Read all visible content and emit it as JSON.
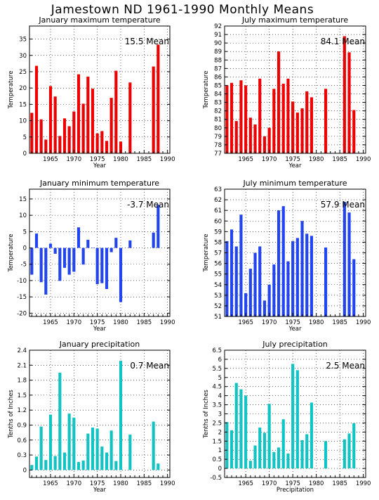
{
  "page": {
    "title": "Jamestown ND  1961-1990 Monthly Means"
  },
  "chart_data": [
    {
      "type": "bar",
      "title": "January maximum temperature",
      "mean_label": "15.5 Mean",
      "xlabel": "Year",
      "ylabel": "Temperature",
      "color": "#ee0000",
      "x": [
        1961,
        1962,
        1963,
        1964,
        1965,
        1966,
        1967,
        1968,
        1969,
        1970,
        1971,
        1972,
        1973,
        1974,
        1975,
        1976,
        1977,
        1978,
        1979,
        1980,
        1981,
        1982,
        1983,
        1984,
        1985,
        1986,
        1987,
        1988,
        1989,
        1990
      ],
      "values": [
        12.4,
        26.8,
        10.4,
        4.2,
        20.6,
        17.4,
        5.3,
        10.7,
        8.3,
        12.8,
        24.2,
        15.2,
        23.5,
        19.8,
        6.1,
        6.8,
        3.8,
        17.0,
        25.3,
        3.6,
        null,
        21.7,
        null,
        null,
        null,
        null,
        26.6,
        33.3,
        null,
        null
      ],
      "xlim": [
        1960.5,
        1990.5
      ],
      "ylim": [
        0,
        39
      ],
      "yticks": [
        0,
        5,
        10,
        15,
        20,
        25,
        30,
        35
      ],
      "xticks": [
        1965,
        1970,
        1975,
        1980,
        1985,
        1990
      ]
    },
    {
      "type": "bar",
      "title": "July maximum temperature",
      "mean_label": "84.1 Mean",
      "xlabel": "Year",
      "ylabel": "Temperature",
      "color": "#ee0000",
      "x": [
        1961,
        1962,
        1963,
        1964,
        1965,
        1966,
        1967,
        1968,
        1969,
        1970,
        1971,
        1972,
        1973,
        1974,
        1975,
        1976,
        1977,
        1978,
        1979,
        1980,
        1981,
        1982,
        1983,
        1984,
        1985,
        1986,
        1987,
        1988,
        1989,
        1990
      ],
      "values": [
        85.0,
        85.3,
        80.8,
        85.6,
        85.0,
        81.2,
        80.4,
        85.8,
        79.0,
        80.0,
        84.6,
        89.0,
        85.2,
        85.8,
        83.1,
        81.8,
        82.3,
        84.3,
        83.6,
        null,
        null,
        84.6,
        null,
        null,
        null,
        90.8,
        88.9,
        82.1,
        null,
        null
      ],
      "xlim": [
        1960.5,
        1990.5
      ],
      "ylim": [
        77,
        92
      ],
      "yticks": [
        77,
        78,
        79,
        80,
        81,
        82,
        83,
        84,
        85,
        86,
        87,
        88,
        89,
        90,
        91,
        92
      ],
      "xticks": [
        1965,
        1970,
        1975,
        1980,
        1985,
        1990
      ]
    },
    {
      "type": "bar",
      "title": "January minimum temperature",
      "mean_label": "-3.7 Mean",
      "xlabel": "Year",
      "ylabel": "Temperature",
      "color": "#2244ee",
      "x": [
        1961,
        1962,
        1963,
        1964,
        1965,
        1966,
        1967,
        1968,
        1969,
        1970,
        1971,
        1972,
        1973,
        1974,
        1975,
        1976,
        1977,
        1978,
        1979,
        1980,
        1981,
        1982,
        1983,
        1984,
        1985,
        1986,
        1987,
        1988,
        1989,
        1990
      ],
      "values": [
        -8.2,
        4.4,
        -10.5,
        -14.3,
        1.3,
        -1.8,
        -10.1,
        -6.1,
        -8.2,
        -7.3,
        6.3,
        -5.1,
        2.5,
        0.1,
        -11.1,
        -10.8,
        -12.6,
        -1.3,
        3.1,
        -16.6,
        null,
        2.3,
        null,
        null,
        null,
        null,
        4.7,
        13.2,
        null,
        null
      ],
      "xlim": [
        1960.5,
        1990.5
      ],
      "ylim": [
        -21,
        18
      ],
      "yticks": [
        -20,
        -15,
        -10,
        -5,
        0,
        5,
        10,
        15
      ],
      "xticks": [
        1965,
        1970,
        1975,
        1980,
        1985,
        1990
      ]
    },
    {
      "type": "bar",
      "title": "July minimum temperature",
      "mean_label": "57.9 Mean",
      "xlabel": "Year",
      "ylabel": "Temperature",
      "color": "#2244ee",
      "x": [
        1961,
        1962,
        1963,
        1964,
        1965,
        1966,
        1967,
        1968,
        1969,
        1970,
        1971,
        1972,
        1973,
        1974,
        1975,
        1976,
        1977,
        1978,
        1979,
        1980,
        1981,
        1982,
        1983,
        1984,
        1985,
        1986,
        1987,
        1988,
        1989,
        1990
      ],
      "values": [
        58.1,
        59.2,
        57.6,
        60.6,
        53.2,
        55.5,
        57.0,
        57.6,
        52.5,
        54.0,
        55.9,
        61.0,
        61.4,
        56.2,
        58.1,
        58.4,
        60.0,
        58.8,
        58.6,
        null,
        null,
        57.5,
        null,
        null,
        null,
        61.8,
        60.8,
        56.4,
        null,
        null
      ],
      "xlim": [
        1960.5,
        1990.5
      ],
      "ylim": [
        51,
        63
      ],
      "yticks": [
        51,
        52,
        53,
        54,
        55,
        56,
        57,
        58,
        59,
        60,
        61,
        62,
        63
      ],
      "xticks": [
        1965,
        1970,
        1975,
        1980,
        1985,
        1990
      ]
    },
    {
      "type": "bar",
      "title": "January precipitation",
      "mean_label": "0.7 Mean",
      "xlabel": "Year",
      "ylabel": "Tenths of Inches",
      "color": "#11c4c4",
      "x": [
        1961,
        1962,
        1963,
        1964,
        1965,
        1966,
        1967,
        1968,
        1969,
        1970,
        1971,
        1972,
        1973,
        1974,
        1975,
        1976,
        1977,
        1978,
        1979,
        1980,
        1981,
        1982,
        1983,
        1984,
        1985,
        1986,
        1987,
        1988,
        1989,
        1990
      ],
      "values": [
        0.1,
        0.27,
        0.87,
        0.2,
        1.11,
        0.28,
        1.95,
        0.35,
        1.13,
        1.05,
        0.16,
        0.19,
        0.73,
        0.85,
        0.83,
        0.47,
        0.35,
        0.79,
        0.18,
        2.19,
        null,
        0.71,
        null,
        null,
        null,
        null,
        0.97,
        0.13,
        null,
        null
      ],
      "xlim": [
        1960.5,
        1990.5
      ],
      "ylim": [
        -0.15,
        2.4
      ],
      "yticks": [
        0,
        0.3,
        0.6,
        0.9,
        1.2,
        1.5,
        1.8,
        2.1,
        2.4
      ],
      "xticks": [
        1965,
        1970,
        1975,
        1980,
        1985,
        1990
      ]
    },
    {
      "type": "bar",
      "title": "July precipitation",
      "mean_label": "2.5 Mean",
      "xlabel": "Precipitation",
      "ylabel": "Tenths of Inches",
      "color": "#11c4c4",
      "x": [
        1961,
        1962,
        1963,
        1964,
        1965,
        1966,
        1967,
        1968,
        1969,
        1970,
        1971,
        1972,
        1973,
        1974,
        1975,
        1976,
        1977,
        1978,
        1979,
        1980,
        1981,
        1982,
        1983,
        1984,
        1985,
        1986,
        1987,
        1988,
        1989,
        1990
      ],
      "values": [
        2.55,
        2.1,
        4.7,
        4.35,
        4.0,
        0.42,
        1.26,
        2.25,
        1.96,
        3.55,
        0.9,
        1.15,
        2.7,
        0.82,
        5.75,
        5.4,
        1.55,
        1.88,
        3.62,
        null,
        null,
        1.5,
        null,
        null,
        null,
        1.6,
        1.92,
        2.48,
        null,
        null
      ],
      "xlim": [
        1960.5,
        1990.5
      ],
      "ylim": [
        -0.5,
        6.5
      ],
      "yticks": [
        -0.5,
        0,
        0.5,
        1,
        1.5,
        2,
        2.5,
        3,
        3.5,
        4,
        4.5,
        5,
        5.5,
        6,
        6.5
      ],
      "xticks": [
        1965,
        1970,
        1975,
        1980,
        1985,
        1990
      ]
    }
  ]
}
